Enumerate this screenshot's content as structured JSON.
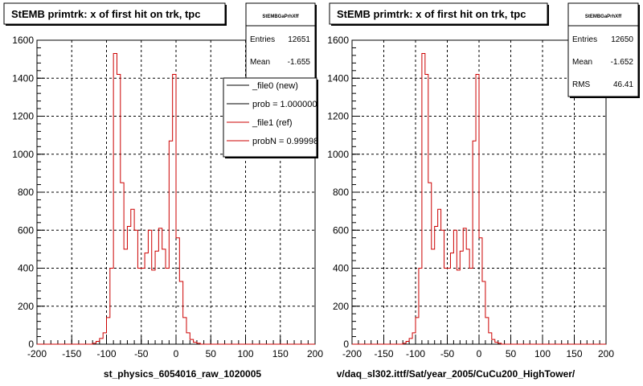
{
  "colors": {
    "ref_hist": "#cc0000",
    "new_hist": "#000000",
    "grid": "#000000",
    "background": "#ffffff"
  },
  "chart_data": [
    {
      "type": "line",
      "title": "StEMB primtrk: x of first hit on trk, tpc",
      "xlabel": "st_physics_6054016_raw_1020005",
      "ylabel": "",
      "xlim": [
        -200,
        200
      ],
      "ylim": [
        0,
        1600
      ],
      "xticks": [
        "-200",
        "-150",
        "-100",
        "-50",
        "0",
        "50",
        "100",
        "150",
        "200"
      ],
      "yticks": [
        "0",
        "200",
        "400",
        "600",
        "800",
        "1000",
        "1200",
        "1400",
        "1600"
      ],
      "grid": true,
      "bin_edges_start": -200,
      "bin_width": 5,
      "series": [
        {
          "name": "_file1 (ref)",
          "values": [
            0,
            0,
            0,
            0,
            0,
            0,
            0,
            0,
            0,
            0,
            0,
            0,
            0,
            0,
            0,
            0,
            5,
            15,
            30,
            60,
            140,
            400,
            1530,
            1420,
            850,
            500,
            620,
            710,
            600,
            400,
            400,
            480,
            600,
            390,
            490,
            610,
            500,
            400,
            1070,
            1420,
            560,
            330,
            140,
            60,
            25,
            10,
            5,
            0,
            0,
            0,
            0,
            0,
            0,
            0,
            0,
            0,
            0,
            0,
            0,
            0,
            0,
            0,
            0,
            0,
            0,
            0,
            0,
            0,
            0,
            0,
            0,
            0,
            0,
            0,
            0,
            0,
            0,
            0,
            0,
            0
          ]
        }
      ],
      "stats": {
        "name": "StEMBGaPrhXff",
        "entries_label": "Entries",
        "entries": "12651",
        "mean_label": "Mean",
        "mean": "-1.655"
      },
      "legend": [
        "_file0 (new)",
        "prob = 1.000000",
        "_file1 (ref)",
        "probN = 0.99998"
      ]
    },
    {
      "type": "line",
      "title": "StEMB primtrk: x of first hit on trk, tpc",
      "xlabel": "v/daq_sl302.ittf/Sat/year_2005/CuCu200_HighTower/",
      "ylabel": "",
      "xlim": [
        -200,
        200
      ],
      "ylim": [
        0,
        1600
      ],
      "xticks": [
        "-200",
        "-150",
        "-100",
        "-50",
        "0",
        "50",
        "100",
        "150",
        "200"
      ],
      "yticks": [
        "0",
        "200",
        "400",
        "600",
        "800",
        "1000",
        "1200",
        "1400",
        "1600"
      ],
      "grid": true,
      "bin_edges_start": -200,
      "bin_width": 5,
      "series": [
        {
          "name": "_file1 (ref)",
          "values": [
            0,
            0,
            0,
            0,
            0,
            0,
            0,
            0,
            0,
            0,
            0,
            0,
            0,
            0,
            0,
            0,
            5,
            15,
            30,
            60,
            140,
            400,
            1530,
            1420,
            850,
            500,
            620,
            710,
            600,
            400,
            400,
            480,
            600,
            390,
            490,
            610,
            500,
            400,
            1070,
            1420,
            560,
            330,
            140,
            60,
            25,
            10,
            5,
            0,
            0,
            0,
            0,
            0,
            0,
            0,
            0,
            0,
            0,
            0,
            0,
            0,
            0,
            0,
            0,
            0,
            0,
            0,
            0,
            0,
            0,
            0,
            0,
            0,
            0,
            0,
            0,
            0,
            0,
            0,
            0,
            0
          ]
        }
      ],
      "stats": {
        "name": "StEMBGaPrhXff",
        "entries_label": "Entries",
        "entries": "12650",
        "mean_label": "Mean",
        "mean": "-1.652",
        "rms_label": "RMS",
        "rms": "46.41"
      }
    }
  ]
}
